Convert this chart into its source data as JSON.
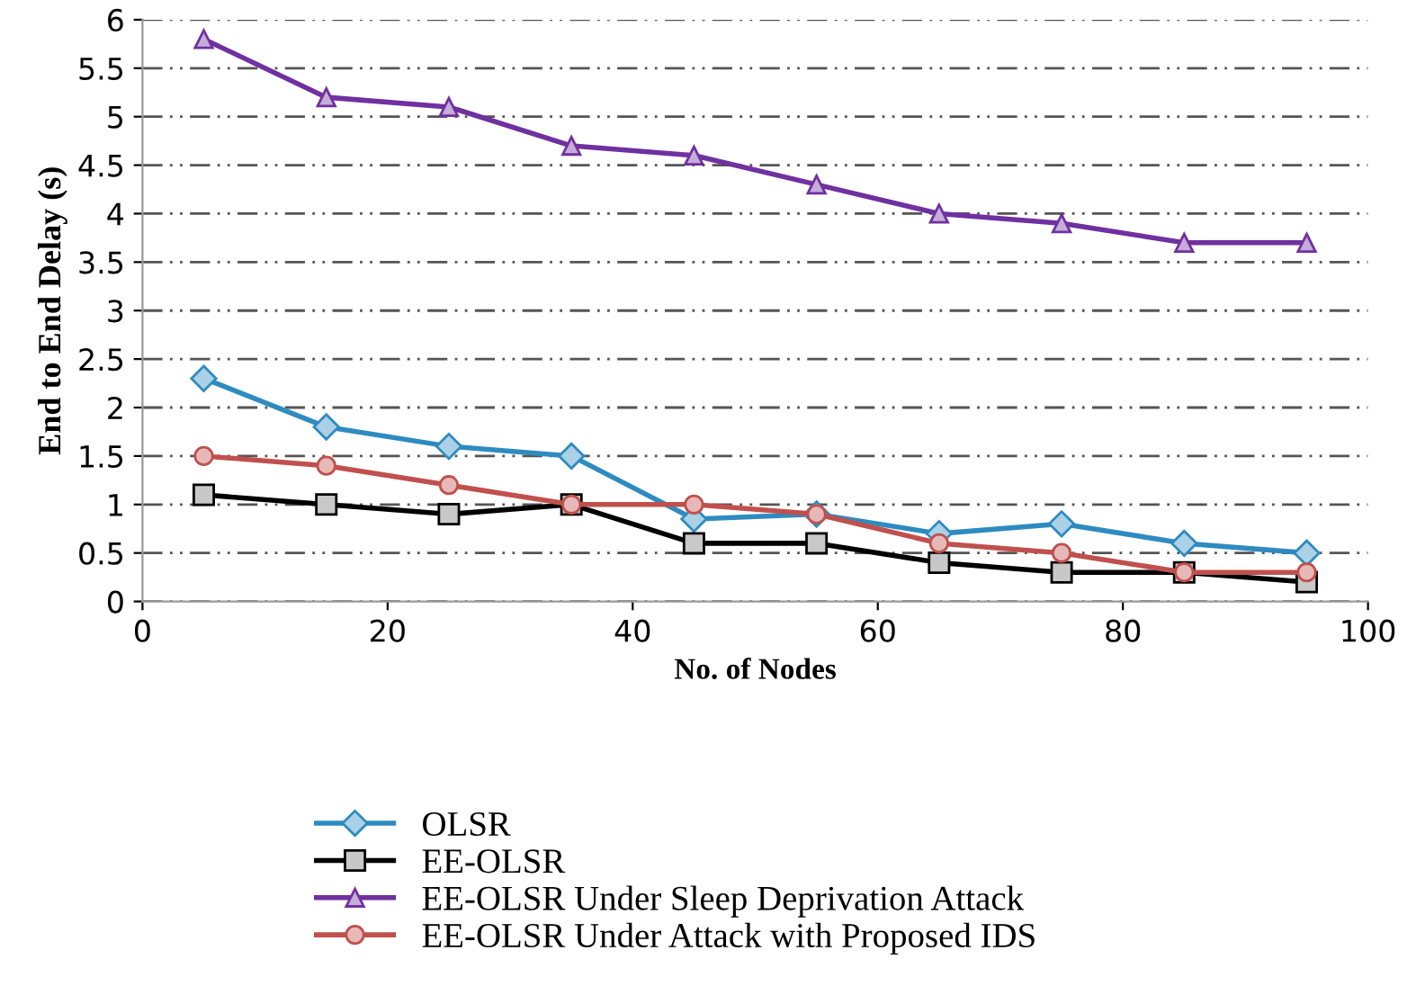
{
  "chart_data": {
    "type": "line",
    "xlabel": "No. of Nodes",
    "ylabel": "End to End Delay (s)",
    "x": [
      5,
      15,
      25,
      35,
      45,
      55,
      65,
      75,
      85,
      95
    ],
    "series": [
      {
        "name": "OLSR",
        "color": "#2e8bc0",
        "marker": "diamond",
        "values": [
          2.3,
          1.8,
          1.6,
          1.5,
          0.85,
          0.9,
          0.7,
          0.8,
          0.6,
          0.5
        ]
      },
      {
        "name": "EE-OLSR",
        "color": "#000000",
        "marker": "square",
        "values": [
          1.1,
          1.0,
          0.9,
          1.0,
          0.6,
          0.6,
          0.4,
          0.3,
          0.3,
          0.2
        ]
      },
      {
        "name": "EE-OLSR Under Sleep Deprivation Attack",
        "color": "#7030a0",
        "marker": "triangle",
        "values": [
          5.8,
          5.2,
          5.1,
          4.7,
          4.6,
          4.3,
          4.0,
          3.9,
          3.7,
          3.7
        ]
      },
      {
        "name": "EE-OLSR Under Attack with Proposed IDS",
        "color": "#c0504d",
        "marker": "circle",
        "values": [
          1.5,
          1.4,
          1.2,
          1.0,
          1.0,
          0.9,
          0.6,
          0.5,
          0.3,
          0.3
        ]
      }
    ],
    "xlim": [
      0,
      100
    ],
    "xticks": [
      0,
      20,
      40,
      60,
      80,
      100
    ],
    "ylim": [
      0,
      6
    ],
    "yticks": [
      0,
      0.5,
      1,
      1.5,
      2,
      2.5,
      3,
      3.5,
      4,
      4.5,
      5,
      5.5,
      6
    ],
    "grid": "y",
    "legend": "bottom",
    "line_style": "solid"
  }
}
